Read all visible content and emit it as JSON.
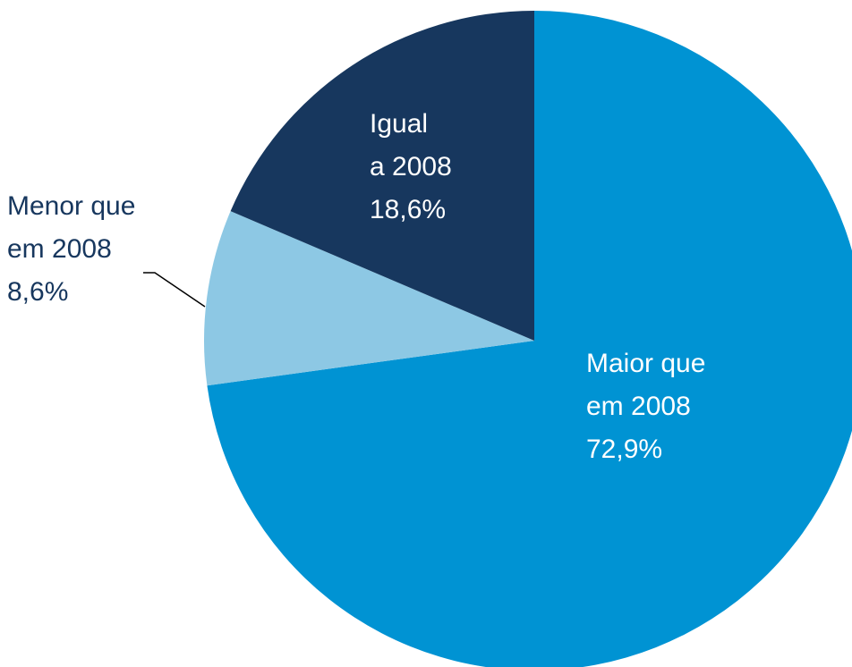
{
  "chart_data": {
    "type": "pie",
    "categories": [
      [
        "Maior que",
        "em 2008"
      ],
      [
        "Menor que",
        "em 2008"
      ],
      [
        "Igual",
        "a 2008"
      ]
    ],
    "values": [
      72.9,
      8.6,
      18.6
    ],
    "value_labels": [
      "72,9%",
      "8,6%",
      "18,6%"
    ],
    "colors": [
      "#0093d3",
      "#8dc8e4",
      "#17375e"
    ]
  }
}
